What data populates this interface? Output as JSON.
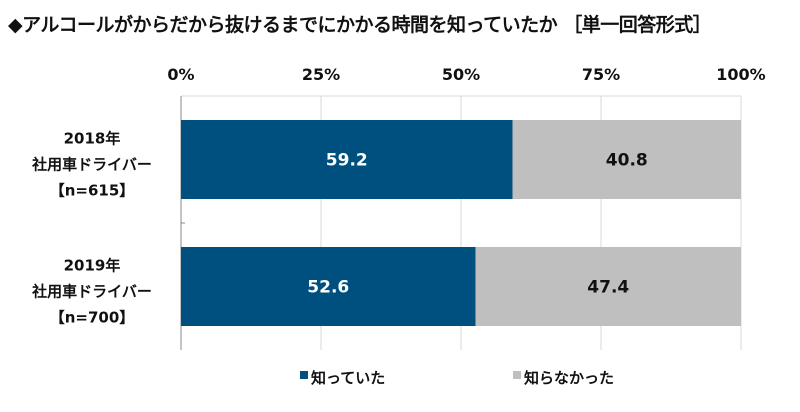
{
  "chart_data": {
    "type": "bar",
    "orientation": "horizontal",
    "stacked": true,
    "title": "◆アルコールがからだから抜けるまでにかかる時間を知っていたか ［単一回答形式］",
    "categories": [
      {
        "lines": [
          "2018年",
          "社用車ドライバー",
          "【n=615】"
        ]
      },
      {
        "lines": [
          "2019年",
          "社用車ドライバー",
          "【n=700】"
        ]
      }
    ],
    "series": [
      {
        "name": "知っていた",
        "color": "#00507f",
        "label_color": "#ffffff",
        "values": [
          59.2,
          52.6
        ]
      },
      {
        "name": "知らなかった",
        "color": "#bfbfbf",
        "label_color": "#111111",
        "values": [
          40.8,
          47.4
        ]
      }
    ],
    "xlim": [
      0,
      100
    ],
    "xticks": [
      0,
      25,
      50,
      75,
      100
    ],
    "xtick_labels": [
      "0%",
      "25%",
      "50%",
      "75%",
      "100%"
    ],
    "xaxis_position": "top",
    "grid": true,
    "legend_position": "bottom"
  }
}
